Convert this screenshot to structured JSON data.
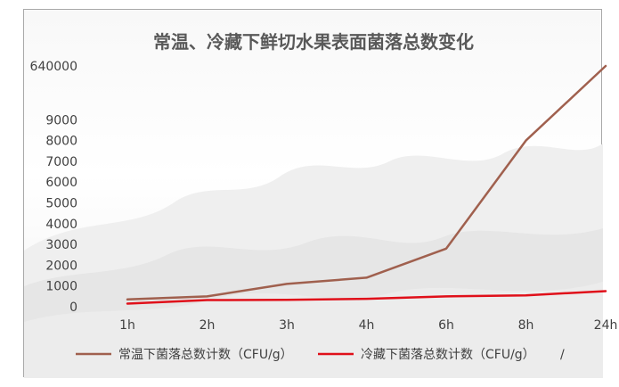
{
  "chart_data": {
    "type": "line",
    "title": "常温、冷藏下鲜切水果表面菌落总数变化",
    "categories": [
      "1h",
      "2h",
      "3h",
      "4h",
      "6h",
      "8h",
      "24h"
    ],
    "y_ticks": [
      "0",
      "1000",
      "2000",
      "3000",
      "4000",
      "5000",
      "6000",
      "7000",
      "8000",
      "9000",
      "640000"
    ],
    "y_tick_values": [
      0,
      1000,
      2000,
      3000,
      4000,
      5000,
      6000,
      7000,
      8000,
      9000,
      640000
    ],
    "series": [
      {
        "name": "常温下菌落总数计数（CFU/g）",
        "color": "#a0604e",
        "values": [
          350,
          500,
          1100,
          1400,
          2800,
          8000,
          640000
        ]
      },
      {
        "name": "冷藏下菌落总数计数（CFU/g）",
        "color": "#e0101a",
        "values": [
          150,
          320,
          330,
          380,
          500,
          550,
          750
        ]
      }
    ],
    "legend_suffix": "/",
    "legend_position": "bottom",
    "grid": false
  }
}
